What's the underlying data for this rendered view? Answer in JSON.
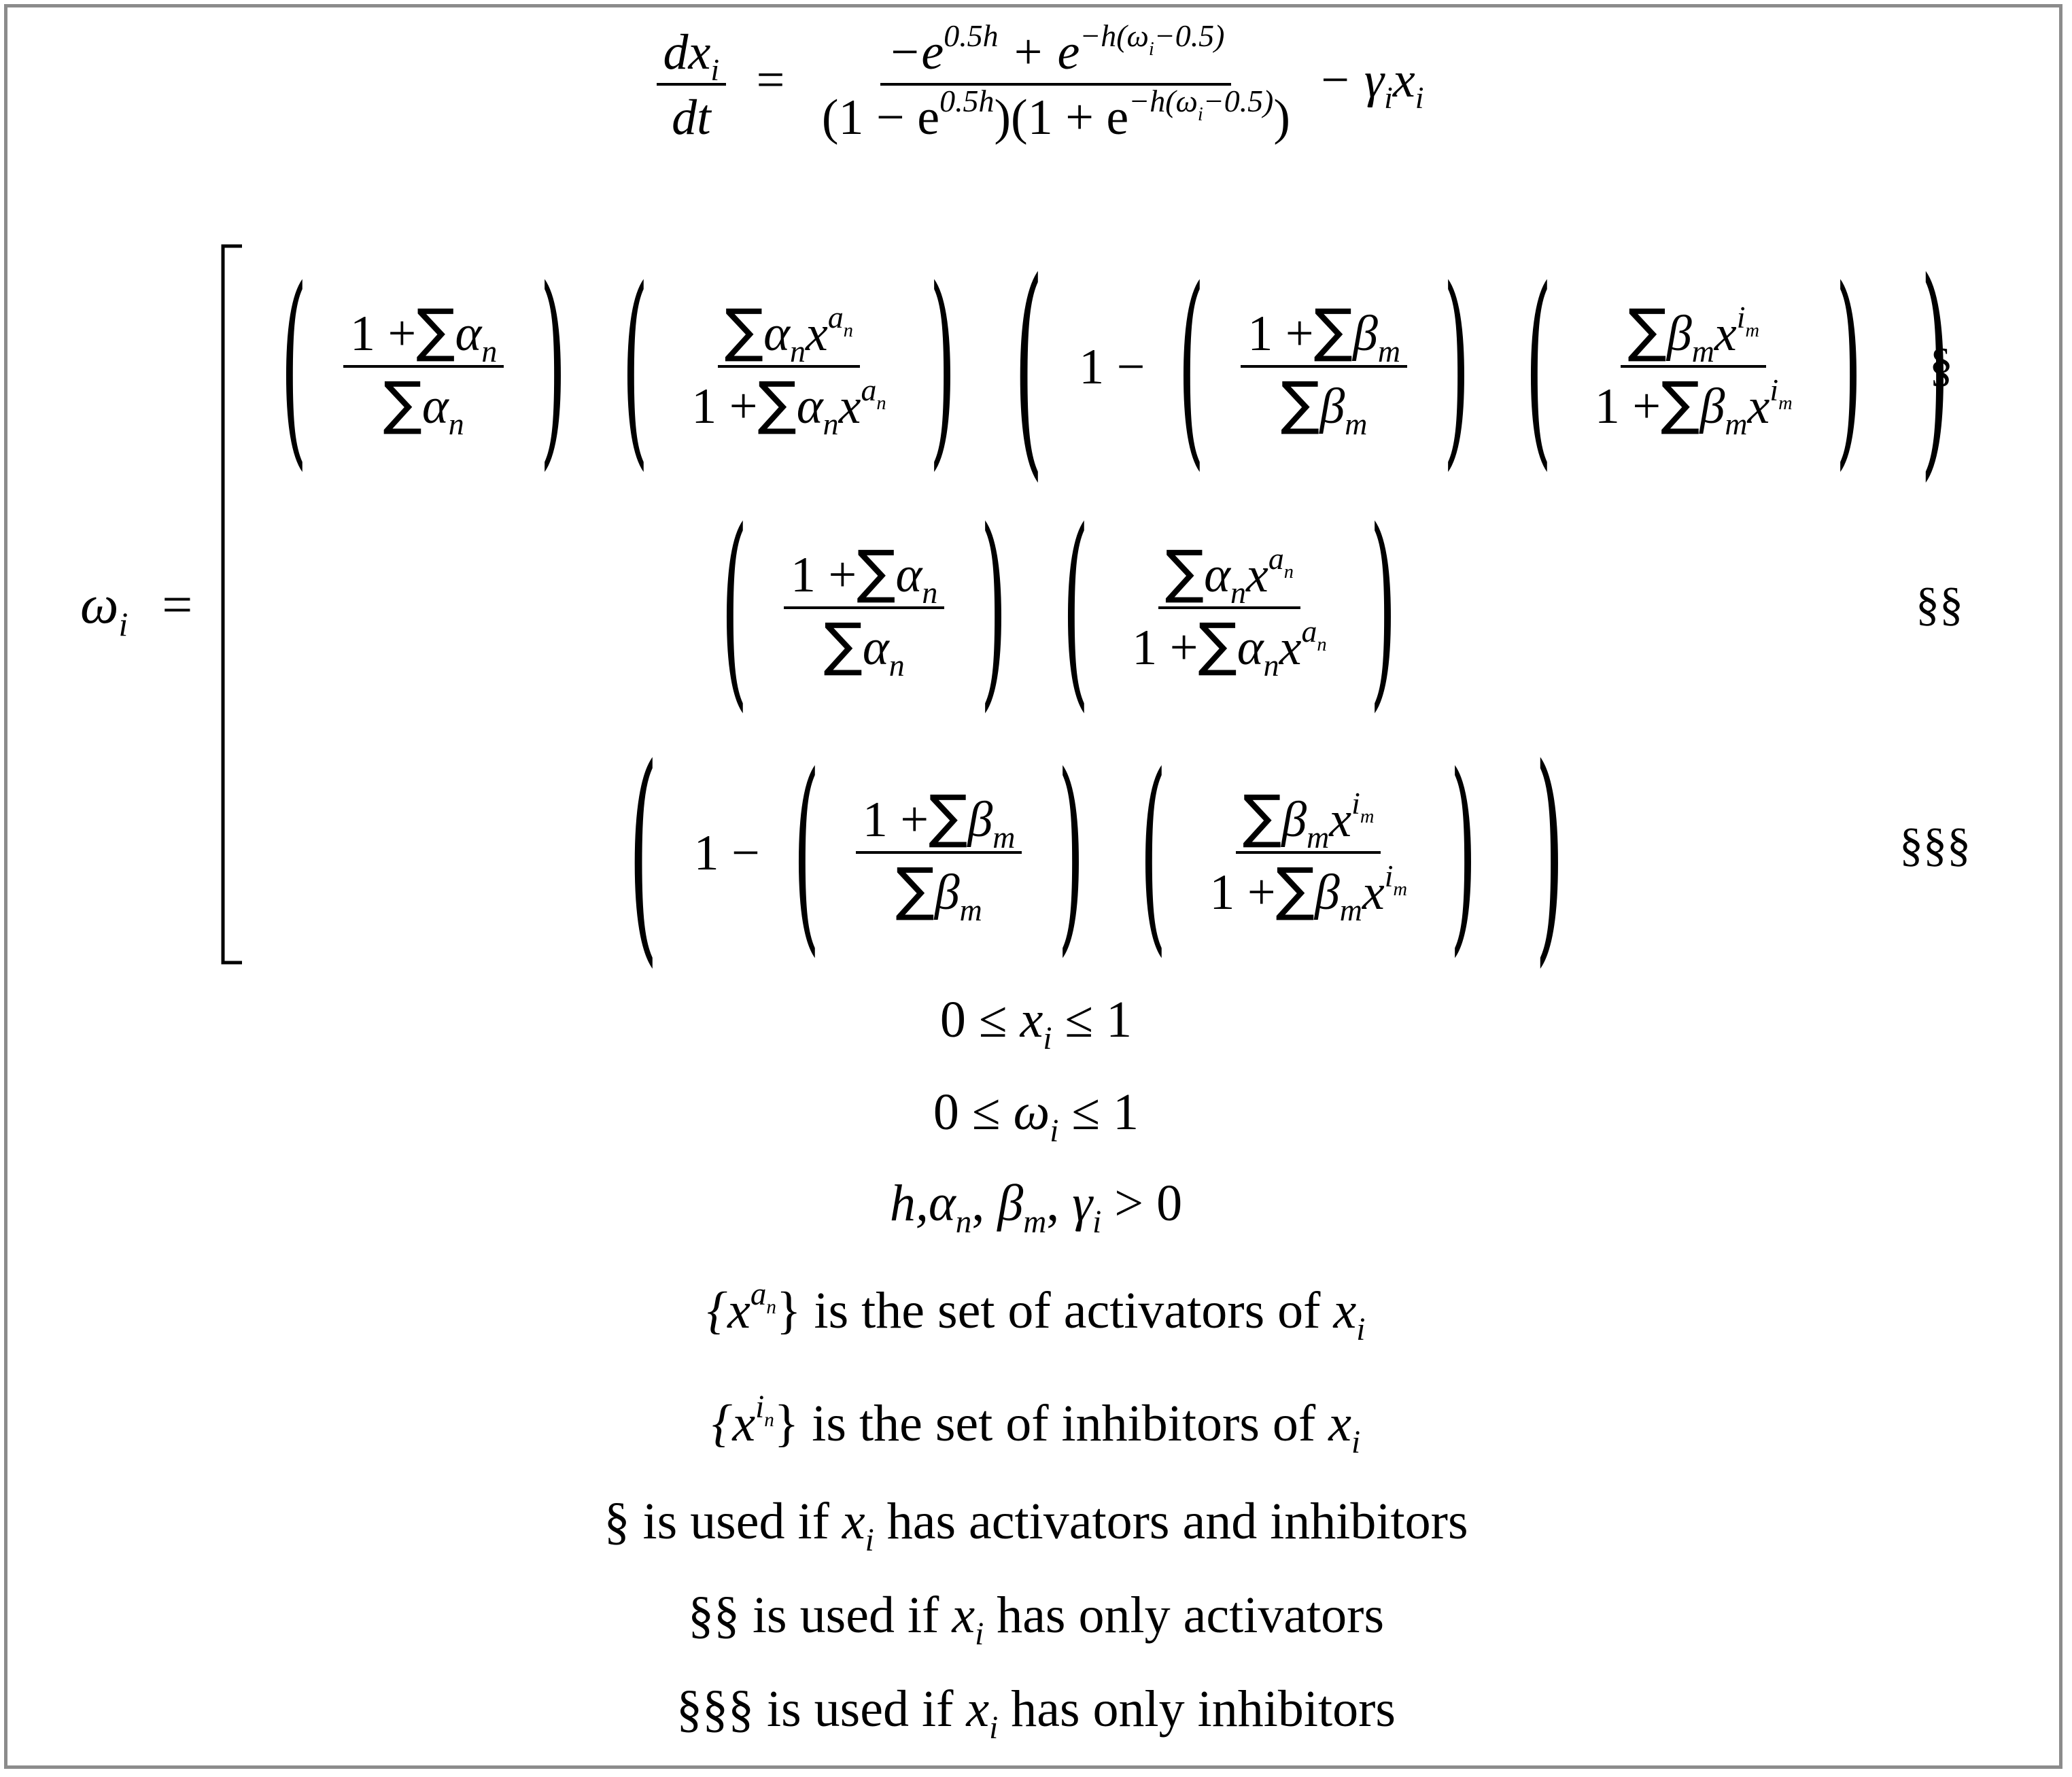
{
  "equation_main": {
    "lhs_num": "dx",
    "lhs_num_sub": "i",
    "lhs_den": "dt",
    "equals": "=",
    "num_minus_e": "−e",
    "num_exp1": "0.5h",
    "num_plus_e": "+ e",
    "num_exp2": "−h(ω",
    "num_exp2_sub": "i",
    "num_exp2_tail": "−0.5)",
    "den_left": "(1 − e",
    "den_exp1": "0.5h",
    "den_mid": ")(1 + e",
    "den_exp2": "−h(ω",
    "den_exp2_sub": "i",
    "den_exp2_tail": "−0.5)",
    "den_right": ")",
    "tail": "− γ",
    "tail_sub": "i",
    "tail_x": "x",
    "tail_x_sub": "i"
  },
  "omega": {
    "lhs": "ω",
    "lhs_sub": "i",
    "equals": "="
  },
  "pieces": {
    "one_plus": "1 +",
    "one": "1",
    "one_minus": "1 −",
    "sum": "∑",
    "alpha": "α",
    "beta": "β",
    "n": "n",
    "m": "m",
    "x": "x",
    "a": "a",
    "i": "i"
  },
  "tags": {
    "case1": "§",
    "case2": "§§",
    "case3": "§§§"
  },
  "constraints": {
    "c1_left": "0 ≤",
    "c1_var": "x",
    "c1_sub": "i",
    "c1_right": "≤ 1",
    "c2_left": "0 ≤",
    "c2_var": "ω",
    "c2_sub": "i",
    "c2_right": "≤ 1",
    "c3_h": "h,",
    "c3_alpha": "α",
    "c3_alpha_sub": "n",
    "c3_beta": "β",
    "c3_beta_sub": "m",
    "c3_gamma": "γ",
    "c3_gamma_sub": "i",
    "c3_right": "> 0",
    "comma": ","
  },
  "notes": {
    "act_open": "{x",
    "act_sup": "a",
    "act_sub": "n",
    "act_text": "} is the set of activators of",
    "act_var": "x",
    "act_var_sub": "i",
    "inh_open": "{x",
    "inh_sup": "i",
    "inh_sub": "n",
    "inh_text": "} is the set of inhibitors of",
    "inh_var": "x",
    "inh_var_sub": "i",
    "n1_tag": "§",
    "n1_pre": "is used if",
    "n1_var": "x",
    "n1_sub": "i",
    "n1_post": "has activators and inhibitors",
    "n2_tag": "§§",
    "n2_pre": "is used if",
    "n2_var": "x",
    "n2_sub": "i",
    "n2_post": "has only activators",
    "n3_tag": "§§§",
    "n3_pre": "is used if",
    "n3_var": "x",
    "n3_sub": "i",
    "n3_post": "has only inhibitors"
  }
}
